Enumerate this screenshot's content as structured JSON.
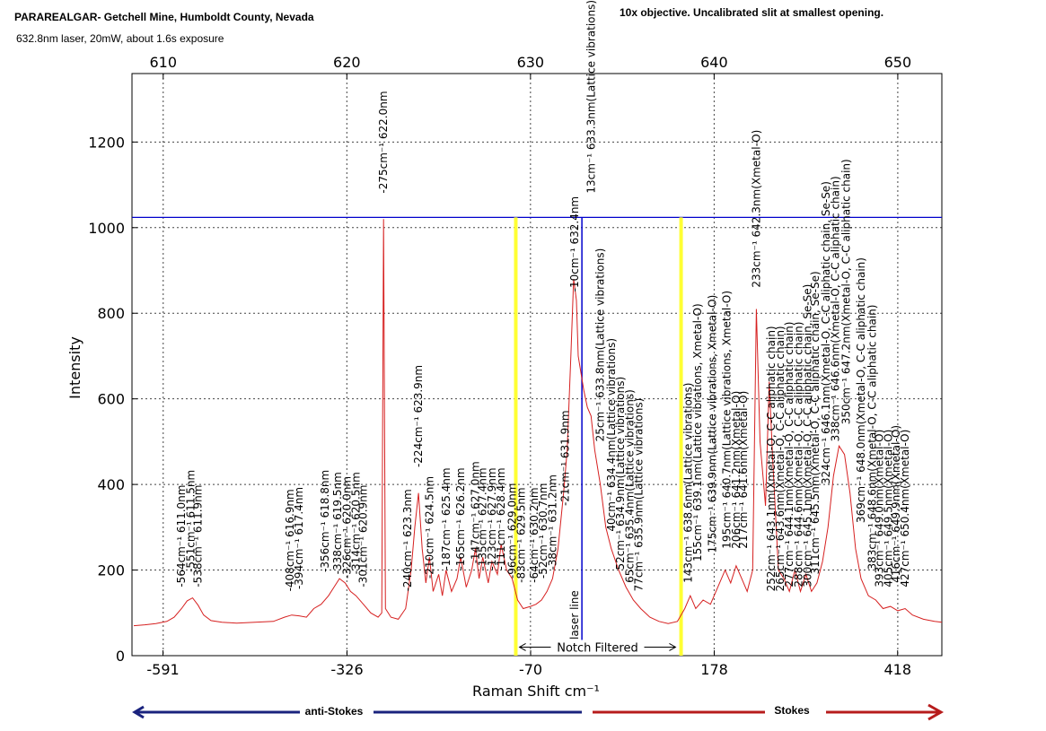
{
  "chart_data": {
    "type": "line",
    "title": "PARAREALGAR- Getchell Mine, Humboldt County, Nevada",
    "subtitle": "632.8nm laser, 20mW, about 1.6s  exposure",
    "note": "10x objective. Uncalibrated slit at smallest opening.",
    "x_label": "Raman Shift cm⁻¹",
    "y_label": "Intensity",
    "color": "#d62020",
    "grid": true,
    "xlim": [
      608.3,
      652.4
    ],
    "xticks": [
      610,
      620,
      630,
      640,
      650
    ],
    "x2lim": [
      -636.5,
      474.8
    ],
    "x2ticks": [
      -591,
      -326,
      -70,
      178,
      418
    ],
    "ylim": [
      0,
      1360
    ],
    "yticks": [
      0,
      200,
      400,
      600,
      800,
      1000,
      1200
    ],
    "x": [
      608.4,
      609,
      609.6,
      610.2,
      610.6,
      611,
      611.3,
      611.6,
      611.9,
      612.2,
      612.6,
      613.2,
      614,
      615,
      616,
      616.6,
      617,
      617.4,
      617.8,
      618.2,
      618.6,
      619,
      619.3,
      619.6,
      619.9,
      620.2,
      620.5,
      620.9,
      621.3,
      621.7,
      621.9,
      622.0,
      622.1,
      622.4,
      622.8,
      623.2,
      623.5,
      623.7,
      623.9,
      624.1,
      624.3,
      624.5,
      624.7,
      625.0,
      625.2,
      625.4,
      625.7,
      626.0,
      626.2,
      626.5,
      626.8,
      627.0,
      627.2,
      627.4,
      627.7,
      627.9,
      628.2,
      628.4,
      628.7,
      629.0,
      629.3,
      629.6,
      630.0,
      630.3,
      630.6,
      630.9,
      631.2,
      631.5,
      631.8,
      632.0,
      632.2,
      632.35,
      632.5,
      632.6,
      632.9,
      633.1,
      633.3,
      633.5,
      633.8,
      634.1,
      634.4,
      634.8,
      635.2,
      635.6,
      636.0,
      636.5,
      637.0,
      637.5,
      638.0,
      638.4,
      638.7,
      639.0,
      639.4,
      639.8,
      640.2,
      640.6,
      640.9,
      641.2,
      641.5,
      641.8,
      642.1,
      642.3,
      642.5,
      642.8,
      643.0,
      643.2,
      643.5,
      643.8,
      644.1,
      644.4,
      644.7,
      645.0,
      645.3,
      645.6,
      645.9,
      646.2,
      646.5,
      646.8,
      647.1,
      647.4,
      647.7,
      648.0,
      648.4,
      648.8,
      649.2,
      649.6,
      650.0,
      650.4,
      650.8,
      651.4,
      652.0,
      652.4
    ],
    "values": [
      70,
      72,
      75,
      80,
      90,
      110,
      128,
      135,
      118,
      95,
      82,
      78,
      76,
      78,
      80,
      90,
      95,
      93,
      90,
      110,
      120,
      140,
      160,
      180,
      170,
      150,
      140,
      120,
      100,
      90,
      100,
      1020,
      110,
      90,
      85,
      110,
      200,
      300,
      380,
      250,
      170,
      230,
      150,
      190,
      140,
      200,
      150,
      180,
      230,
      160,
      200,
      250,
      180,
      230,
      170,
      220,
      190,
      260,
      200,
      180,
      130,
      110,
      115,
      120,
      130,
      150,
      180,
      250,
      380,
      480,
      700,
      880,
      830,
      700,
      620,
      580,
      560,
      480,
      400,
      300,
      250,
      200,
      160,
      130,
      110,
      90,
      80,
      75,
      80,
      110,
      140,
      110,
      130,
      120,
      160,
      200,
      170,
      210,
      180,
      150,
      200,
      810,
      500,
      350,
      640,
      450,
      200,
      180,
      150,
      200,
      150,
      190,
      150,
      170,
      220,
      300,
      420,
      490,
      470,
      380,
      250,
      180,
      140,
      130,
      110,
      115,
      105,
      110,
      95,
      85,
      80,
      78
    ],
    "hline": {
      "y": 1024,
      "color": "#0000cc"
    },
    "vlines": [
      {
        "x": 629.2,
        "color": "#ffff33"
      },
      {
        "x": 638.2,
        "color": "#ffff33"
      }
    ],
    "laser": {
      "x": 632.8,
      "color": "#0000cc",
      "label": "laser line"
    },
    "notch": {
      "x": [
        629.4,
        637.9
      ],
      "y": 20,
      "label": "Notch Filtered"
    },
    "stokes": {
      "anti": "anti-Stokes",
      "stokes": "Stokes"
    },
    "annotations": [
      {
        "x": 611.0,
        "y": 160,
        "text": "-564cm⁻¹ 611.0nm"
      },
      {
        "x": 611.5,
        "y": 195,
        "text": "-551cm⁻¹ 611.5nm"
      },
      {
        "x": 611.9,
        "y": 160,
        "text": "-538cm⁻¹ 611.9nm"
      },
      {
        "x": 616.9,
        "y": 150,
        "text": "-408cm⁻¹ 616.9nm"
      },
      {
        "x": 617.4,
        "y": 155,
        "text": "-394cm⁻¹ 617.4nm"
      },
      {
        "x": 618.8,
        "y": 195,
        "text": "-356cm⁻¹ 618.8nm"
      },
      {
        "x": 619.5,
        "y": 190,
        "text": "-338cm⁻¹ 619.5nm"
      },
      {
        "x": 620.0,
        "y": 180,
        "text": "-326cm⁻¹ 620.0nm"
      },
      {
        "x": 620.5,
        "y": 190,
        "text": "-314cm⁻¹ 620.5nm"
      },
      {
        "x": 620.9,
        "y": 160,
        "text": "-301cm⁻¹ 620.9nm"
      },
      {
        "x": 622.0,
        "y": 1080,
        "text": "-275cm⁻¹ 622.0nm"
      },
      {
        "x": 623.3,
        "y": 150,
        "text": "-240cm⁻¹ 623.3nm"
      },
      {
        "x": 623.9,
        "y": 440,
        "text": "-224cm⁻¹ 623.9nm"
      },
      {
        "x": 624.5,
        "y": 180,
        "text": "-210cm⁻¹ 624.5nm"
      },
      {
        "x": 625.4,
        "y": 200,
        "text": "-187cm⁻¹ 625.4nm"
      },
      {
        "x": 626.2,
        "y": 200,
        "text": "-165cm⁻¹ 626.2nm"
      },
      {
        "x": 627.0,
        "y": 215,
        "text": "-147cm⁻¹ 627.0nm"
      },
      {
        "x": 627.4,
        "y": 200,
        "text": "-135cm⁻¹ 627.4nm"
      },
      {
        "x": 627.9,
        "y": 200,
        "text": "-123cm⁻¹ 627.9nm"
      },
      {
        "x": 628.4,
        "y": 200,
        "text": "-111cm⁻¹ 628.4nm"
      },
      {
        "x": 629.0,
        "y": 180,
        "text": "-96cm⁻¹ 629.0nm"
      },
      {
        "x": 629.5,
        "y": 170,
        "text": "-83cm⁻¹ 629.5nm"
      },
      {
        "x": 630.2,
        "y": 170,
        "text": "-64cm⁻¹ 630.2nm"
      },
      {
        "x": 630.7,
        "y": 180,
        "text": "-52cm⁻¹ 630.7nm"
      },
      {
        "x": 631.2,
        "y": 200,
        "text": "-38cm⁻¹ 631.2nm"
      },
      {
        "x": 631.9,
        "y": 350,
        "text": "-21cm⁻¹ 631.9nm"
      },
      {
        "x": 632.4,
        "y": 850,
        "text": "-10cm⁻¹ 632.4nm"
      },
      {
        "x": 633.3,
        "y": 1080,
        "text": "13cm⁻¹ 633.3nm(Lattice vibrations)"
      },
      {
        "x": 633.8,
        "y": 500,
        "text": "25cm⁻¹ 633.8nm(Lattice vibrations)"
      },
      {
        "x": 634.4,
        "y": 290,
        "text": "40cm⁻¹ 634.4nm(Lattice vibrations)"
      },
      {
        "x": 634.9,
        "y": 200,
        "text": "52cm⁻¹ 634.9nm(Lattice vibrations)"
      },
      {
        "x": 635.4,
        "y": 170,
        "text": "65cm⁻¹ 635.4nm(Lattice vibrations)"
      },
      {
        "x": 635.9,
        "y": 150,
        "text": "77cm⁻¹ 635.9nm(Lattice vibrations)"
      },
      {
        "x": 638.6,
        "y": 170,
        "text": "143cm⁻¹ 638.6nm(Lattice vibrations)"
      },
      {
        "x": 639.1,
        "y": 220,
        "text": "155cm⁻¹ 639.1nm(Lattice vibrations, Xmetal-O)"
      },
      {
        "x": 639.9,
        "y": 240,
        "text": "175cm⁻¹ 639.9nm(Lattice vibrations, Xmetal-O)"
      },
      {
        "x": 640.7,
        "y": 250,
        "text": "195cm⁻¹ 640.7nm(Lattice vibrations, Xmetal-O)"
      },
      {
        "x": 641.2,
        "y": 250,
        "text": "206cm⁻¹ 641.2nm(Xmetal-O)"
      },
      {
        "x": 641.6,
        "y": 250,
        "text": "217cm⁻¹ 641.6nm(Xmetal-O)"
      },
      {
        "x": 642.3,
        "y": 860,
        "text": "233cm⁻¹ 642.3nm(Xmetal-O)"
      },
      {
        "x": 643.1,
        "y": 150,
        "text": "252cm⁻¹ 643.1nm(Xmetal-O, C-C aliphatic chain)"
      },
      {
        "x": 643.6,
        "y": 150,
        "text": "265cm⁻¹ 643.6nm(Xmetal-O, C-C aliphatic chain)"
      },
      {
        "x": 644.1,
        "y": 160,
        "text": "277cm⁻¹ 644.1nm(Xmetal-O, C-C aliphatic chain)"
      },
      {
        "x": 644.6,
        "y": 160,
        "text": "288cm⁻¹ 644.6nm(Xmetal-O, C-C aliphatic chain)"
      },
      {
        "x": 645.1,
        "y": 160,
        "text": "300cm⁻¹ 645.1nm(Xmetal-O, C-C aliphatic chain, Se-Se)"
      },
      {
        "x": 645.5,
        "y": 190,
        "text": "311cm⁻¹ 645.5nm(Xmetal-O, C-C aliphatic chain, Se-Se)"
      },
      {
        "x": 646.1,
        "y": 400,
        "text": "324cm⁻¹ 646.1nm(Xmetal-O, C-C aliphatic chain, Se-Se)"
      },
      {
        "x": 646.6,
        "y": 500,
        "text": "338cm⁻¹ 646.6nm(Xmetal-O, C-C aliphatic chain)"
      },
      {
        "x": 647.2,
        "y": 540,
        "text": "350cm⁻¹ 647.2nm(Xmetal-O, C-C aliphatic chain)"
      },
      {
        "x": 648.0,
        "y": 310,
        "text": "369cm⁻¹ 648.0nm(Xmetal-O, C-C aliphatic chain)"
      },
      {
        "x": 648.6,
        "y": 200,
        "text": "383cm⁻¹ 648.6nm(Xmetal-O, C-C aliphatic chain)"
      },
      {
        "x": 649.0,
        "y": 160,
        "text": "393cm⁻¹ 649.0nm(Xmetal-O)"
      },
      {
        "x": 649.5,
        "y": 160,
        "text": "405cm⁻¹ 649.5nm(Xmetal-O)"
      },
      {
        "x": 649.9,
        "y": 170,
        "text": "416cm⁻¹ 649.9nm(Xmetal-O)"
      },
      {
        "x": 650.4,
        "y": 160,
        "text": "427cm⁻¹ 650.4nm(Xmetal-O)"
      }
    ]
  }
}
